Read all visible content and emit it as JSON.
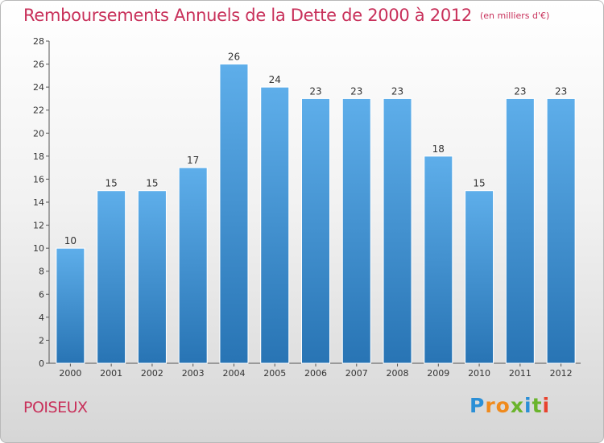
{
  "header": {
    "title": "Remboursements Annuels de la Dette de 2000 à 2012",
    "unit": "(en milliers d'€)"
  },
  "footer": {
    "place": "POISEUX",
    "brand": "Proxiti"
  },
  "colors": {
    "title": "#c8305a",
    "bar_light": "#5eaeea",
    "bar_dark": "#2874b4",
    "brand_letters": [
      "#2b8fd6",
      "#f08a1c",
      "#f08a1c",
      "#6ab42c",
      "#2b8fd6",
      "#6ab42c",
      "#e8432e"
    ]
  },
  "chart_data": {
    "type": "bar",
    "title": "Remboursements Annuels de la Dette de 2000 à 2012",
    "categories": [
      "2000",
      "2001",
      "2002",
      "2003",
      "2004",
      "2005",
      "2006",
      "2007",
      "2008",
      "2009",
      "2010",
      "2011",
      "2012"
    ],
    "values": [
      10,
      15,
      15,
      17,
      26,
      24,
      23,
      23,
      23,
      18,
      15,
      23,
      23
    ],
    "ylim": [
      0,
      28
    ],
    "yticks": [
      0,
      2,
      4,
      6,
      8,
      10,
      12,
      14,
      16,
      18,
      20,
      22,
      24,
      26,
      28
    ],
    "grid": false,
    "xlabel": "",
    "ylabel": ""
  }
}
